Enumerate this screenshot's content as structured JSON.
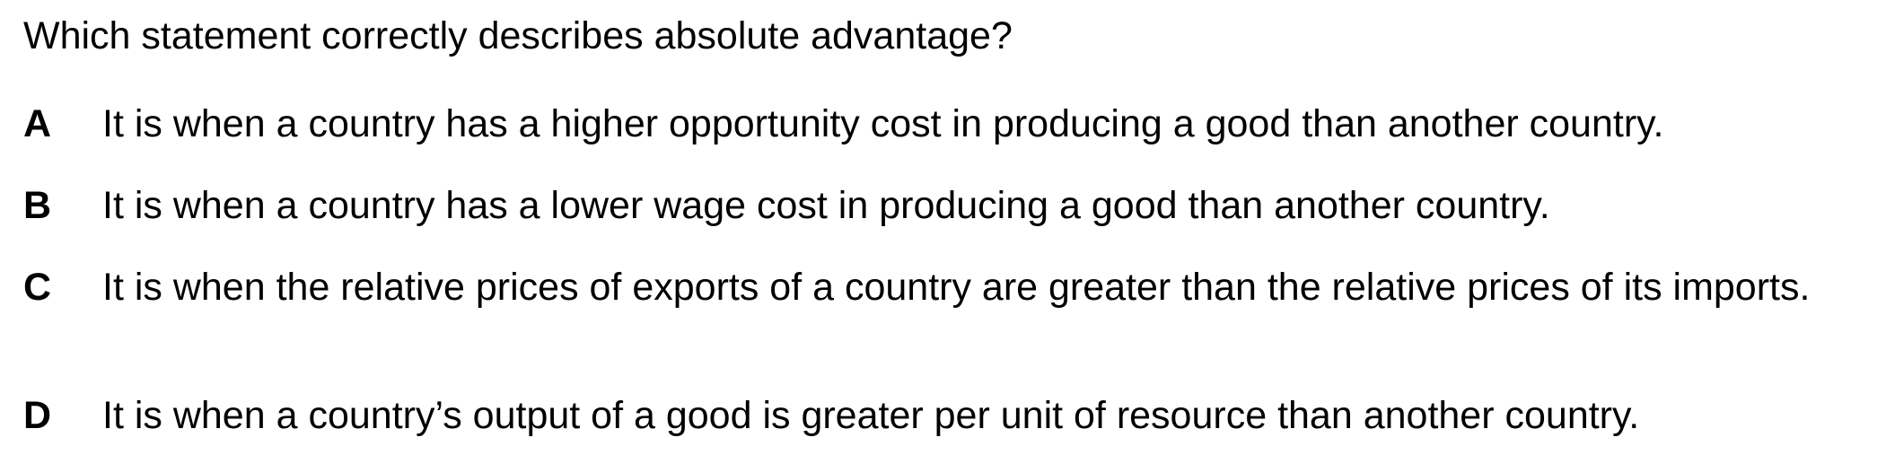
{
  "question": {
    "text": "Which statement correctly describes absolute advantage?"
  },
  "options": [
    {
      "letter": "A",
      "text": "It is when a country has a higher opportunity cost in producing a good than another country."
    },
    {
      "letter": "B",
      "text": "It is when a country has a lower wage cost in producing a good than another country."
    },
    {
      "letter": "C",
      "text": "It is when the relative prices of exports of a country are greater than the relative prices of its imports."
    },
    {
      "letter": "D",
      "text": "It is when a country’s output of a good is greater per unit of resource than another country."
    }
  ]
}
